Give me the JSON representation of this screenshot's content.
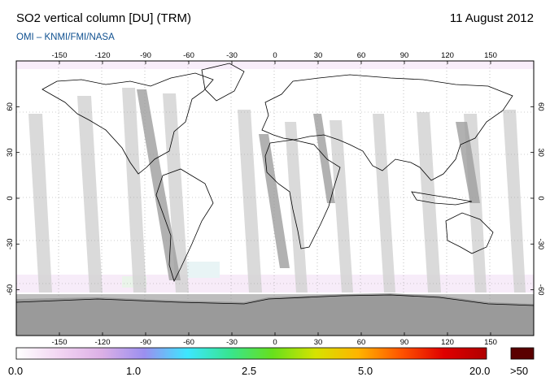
{
  "header": {
    "title": "SO2 vertical column [DU] (TRM)",
    "date": "11 August 2012",
    "subtitle": "OMI  –  KNMI/FMI/NASA"
  },
  "map": {
    "lon_ticks": [
      "-150",
      "-120",
      "-90",
      "-60",
      "-30",
      "0",
      "30",
      "60",
      "90",
      "120",
      "150"
    ],
    "lat_ticks": [
      "60",
      "30",
      "0",
      "-30",
      "-60"
    ],
    "colors": {
      "ocean": "#ffffff",
      "coast": "#000000",
      "swath": "#d4d4d4",
      "swath_dark": "#9e9e9e",
      "polar": "#bdbdbd",
      "polar_dark": "#9a9a9a",
      "noise": "#e9c6ee"
    }
  },
  "colorbar": {
    "labels": [
      "0.0",
      "1.0",
      "2.5",
      "5.0",
      "20.0"
    ],
    "overflow_label": ">50",
    "stops": [
      "#ffffff",
      "#f2d5f2",
      "#dcb0e6",
      "#9b8ff0",
      "#3de6ff",
      "#38e58f",
      "#67e01c",
      "#d6e200",
      "#ffb400",
      "#ff5400",
      "#e00000",
      "#b00000"
    ],
    "overflow_color": "#5a0000"
  }
}
